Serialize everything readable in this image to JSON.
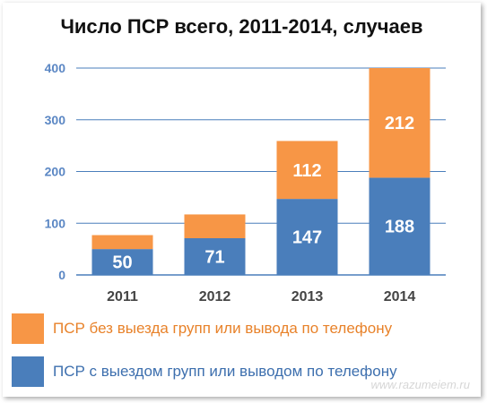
{
  "chart_data": {
    "type": "bar",
    "stacked": true,
    "title": "Число ПСР всего, 2011-2014, случаев",
    "categories": [
      "2011",
      "2012",
      "2013",
      "2014"
    ],
    "series": [
      {
        "name": "ПСР с выездом групп или выводом по телефону",
        "color": "#4a7ebb",
        "values": [
          50,
          71,
          147,
          188
        ],
        "labels": [
          "50",
          "71",
          "147",
          "188"
        ]
      },
      {
        "name": "ПСР без выезда групп или вывода по телефону",
        "color": "#f79646",
        "values": [
          27,
          46,
          112,
          212
        ],
        "labels": [
          "",
          "",
          "112",
          "212"
        ]
      }
    ],
    "ylim": [
      0,
      400
    ],
    "yticks": [
      0,
      100,
      200,
      300,
      400
    ],
    "grid": true,
    "legend_position": "bottom"
  },
  "watermark": "www.razumeiem.ru"
}
